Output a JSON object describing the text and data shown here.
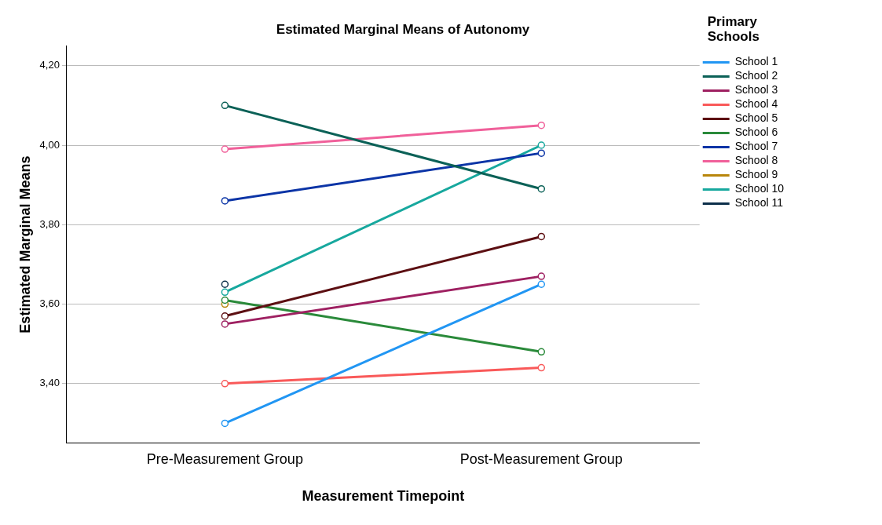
{
  "chart_data": {
    "type": "line",
    "title": "Estimated Marginal Means of Autonomy",
    "xlabel": "Measurement Timepoint",
    "ylabel": "Estimated Marginal Means",
    "legend_title": "Primary Schools",
    "categories": [
      "Pre-Measurement Group",
      "Post-Measurement Group"
    ],
    "series": [
      {
        "name": "School 1",
        "color": "#2196f3",
        "values": [
          3.3,
          3.65
        ]
      },
      {
        "name": "School 2",
        "color": "#0b6157",
        "values": [
          4.1,
          3.89
        ]
      },
      {
        "name": "School 3",
        "color": "#9e2061",
        "values": [
          3.55,
          3.67
        ]
      },
      {
        "name": "School 4",
        "color": "#f95959",
        "values": [
          3.4,
          3.44
        ]
      },
      {
        "name": "School 5",
        "color": "#5c0f12",
        "values": [
          3.57,
          3.77
        ]
      },
      {
        "name": "School 6",
        "color": "#2a8a3a",
        "values": [
          3.61,
          3.48
        ]
      },
      {
        "name": "School 7",
        "color": "#0b34a6",
        "values": [
          3.86,
          3.98
        ]
      },
      {
        "name": "School 8",
        "color": "#f0609a",
        "values": [
          3.99,
          4.05
        ]
      },
      {
        "name": "School 9",
        "color": "#b8860b",
        "values": [
          3.6,
          null
        ]
      },
      {
        "name": "School 10",
        "color": "#17a89e",
        "values": [
          3.63,
          4.0
        ]
      },
      {
        "name": "School 11",
        "color": "#0c2f4a",
        "values": [
          3.65,
          null
        ]
      }
    ],
    "ylim": [
      3.25,
      4.25
    ],
    "yticks": [
      {
        "value": 3.4,
        "label": "3,40"
      },
      {
        "value": 3.6,
        "label": "3,60"
      },
      {
        "value": 3.8,
        "label": "3,80"
      },
      {
        "value": 4.0,
        "label": "4,00"
      },
      {
        "value": 4.2,
        "label": "4,20"
      }
    ],
    "grid": "y",
    "legend": "right",
    "marker": "circle",
    "line_style": "solid"
  }
}
